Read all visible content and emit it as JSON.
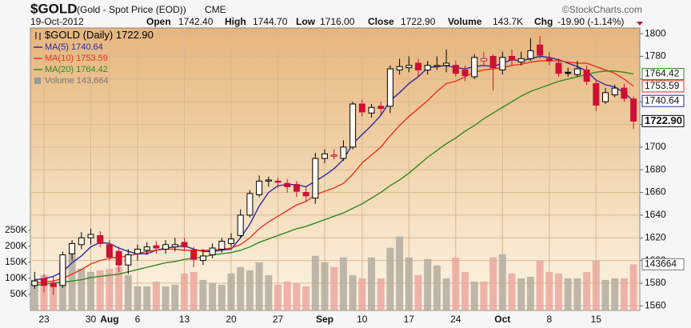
{
  "chart_data": {
    "type": "candlestick",
    "title": "$GOLD",
    "subtitle": "(Gold - Spot Price (EOD))",
    "exchange": "CME",
    "source": "©StockCharts.com",
    "date": "19-Oct-2012",
    "quote": [
      {
        "label": "Open",
        "value": "1742.40"
      },
      {
        "label": "High",
        "value": "1744.70"
      },
      {
        "label": "Low",
        "value": "1716.00"
      },
      {
        "label": "Close",
        "value": "1722.90"
      },
      {
        "label": "Volume",
        "value": "143.7K"
      },
      {
        "label": "Chg",
        "value": "-19.90 (-1.14%)"
      }
    ],
    "price_name": "$GOLD (Daily)",
    "price_last_label": "1722.90",
    "up_color": "#000000",
    "down_color": "#cc1133",
    "categories": [
      null,
      "23",
      null,
      null,
      null,
      null,
      "30",
      null,
      "Aug",
      null,
      null,
      "6",
      null,
      null,
      null,
      null,
      "13",
      null,
      null,
      null,
      null,
      "20",
      null,
      null,
      null,
      null,
      "27",
      null,
      null,
      null,
      null,
      "Sep",
      null,
      null,
      null,
      "10",
      null,
      null,
      null,
      null,
      "17",
      null,
      null,
      null,
      null,
      "24",
      null,
      null,
      null,
      null,
      "Oct",
      null,
      null,
      null,
      null,
      "8",
      null,
      null,
      null,
      null,
      "15",
      null,
      null,
      null,
      null
    ],
    "open": [
      1578,
      1584,
      1580,
      1578,
      1606,
      1614,
      1620,
      1622,
      1614,
      1608,
      1596,
      1606,
      1609,
      1613,
      1610,
      1612,
      1616,
      1609,
      1600,
      1605,
      1610,
      1615,
      1622,
      1640,
      1658,
      1670,
      1670,
      1668,
      1667,
      1660,
      1655,
      1690,
      1692,
      1690,
      1700,
      1738,
      1730,
      1736,
      1736,
      1768,
      1770,
      1774,
      1768,
      1771,
      1772,
      1772,
      1768,
      1762,
      1776,
      1780,
      1768,
      1780,
      1775,
      1778,
      1790,
      1778,
      1774,
      1766,
      1764,
      1768,
      1756,
      1740,
      1746,
      1752,
      1742.4
    ],
    "high": [
      1590,
      1588,
      1586,
      1608,
      1618,
      1625,
      1628,
      1626,
      1618,
      1612,
      1610,
      1614,
      1616,
      1617,
      1618,
      1620,
      1620,
      1612,
      1610,
      1615,
      1620,
      1624,
      1645,
      1662,
      1675,
      1674,
      1673,
      1672,
      1670,
      1665,
      1695,
      1698,
      1698,
      1706,
      1740,
      1742,
      1738,
      1740,
      1772,
      1778,
      1780,
      1778,
      1776,
      1780,
      1786,
      1776,
      1772,
      1782,
      1784,
      1782,
      1784,
      1786,
      1784,
      1796,
      1798,
      1784,
      1778,
      1770,
      1776,
      1772,
      1760,
      1752,
      1755,
      1756,
      1744.7
    ],
    "low": [
      1575,
      1572,
      1570,
      1576,
      1600,
      1610,
      1614,
      1612,
      1600,
      1590,
      1588,
      1600,
      1605,
      1606,
      1606,
      1608,
      1609,
      1594,
      1596,
      1602,
      1607,
      1612,
      1620,
      1638,
      1656,
      1665,
      1664,
      1660,
      1656,
      1652,
      1650,
      1686,
      1689,
      1688,
      1698,
      1727,
      1726,
      1728,
      1730,
      1764,
      1766,
      1762,
      1764,
      1768,
      1766,
      1762,
      1758,
      1760,
      1772,
      1750,
      1764,
      1772,
      1772,
      1776,
      1778,
      1772,
      1762,
      1762,
      1762,
      1755,
      1732,
      1738,
      1744,
      1740,
      1716
    ],
    "close": [
      1582,
      1578,
      1577,
      1605,
      1615,
      1620,
      1623,
      1615,
      1603,
      1596,
      1605,
      1610,
      1612,
      1611,
      1614,
      1614,
      1612,
      1601,
      1604,
      1611,
      1617,
      1619,
      1640,
      1659,
      1670,
      1671,
      1669,
      1665,
      1661,
      1657,
      1690,
      1694,
      1693,
      1700,
      1738,
      1731,
      1735,
      1734,
      1769,
      1771,
      1772,
      1768,
      1772,
      1772,
      1774,
      1765,
      1763,
      1779,
      1778,
      1770,
      1779,
      1777,
      1778,
      1785,
      1781,
      1776,
      1765,
      1765,
      1769,
      1758,
      1737,
      1748,
      1752,
      1743,
      1722.9
    ],
    "volume": {
      "name": "Volume",
      "axis": "y2",
      "up_color": "#b3ab9e",
      "down_color": "#eba79d",
      "legend_label": "143,664",
      "tag_label": "143664",
      "values": [
        95000,
        110000,
        90000,
        150000,
        180000,
        130000,
        120000,
        125000,
        130000,
        135000,
        110000,
        75000,
        75000,
        90000,
        75000,
        80000,
        115000,
        120000,
        95000,
        85000,
        80000,
        115000,
        135000,
        125000,
        150000,
        110000,
        80000,
        90000,
        85000,
        75000,
        170000,
        150000,
        135000,
        165000,
        110000,
        100000,
        165000,
        100000,
        195000,
        230000,
        165000,
        110000,
        160000,
        140000,
        100000,
        165000,
        120000,
        90000,
        90000,
        165000,
        175000,
        115000,
        100000,
        105000,
        155000,
        120000,
        115000,
        100000,
        100000,
        120000,
        155000,
        95000,
        100000,
        100000,
        143664
      ]
    },
    "series": [
      {
        "name": "MA(5)",
        "color": "#2a2aa8",
        "last_label": "1740.64",
        "values": [
          1583,
          1584,
          1586,
          1590,
          1598,
          1604,
          1612,
          1616,
          1615,
          1611,
          1608,
          1606,
          1606,
          1609,
          1611,
          1612,
          1613,
          1610,
          1608,
          1608,
          1609,
          1610,
          1620,
          1632,
          1648,
          1660,
          1666,
          1667,
          1667,
          1665,
          1670,
          1675,
          1681,
          1689,
          1703,
          1711,
          1719,
          1728,
          1741,
          1748,
          1756,
          1762,
          1770,
          1771,
          1772,
          1770,
          1769,
          1771,
          1772,
          1771,
          1774,
          1777,
          1776,
          1778,
          1780,
          1779,
          1777,
          1774,
          1771,
          1767,
          1759,
          1755,
          1753,
          1748,
          1740.64
        ]
      },
      {
        "name": "MA(10)",
        "color": "#e8331c",
        "last_label": "1753.59",
        "values": [
          1580,
          1581,
          1582,
          1584,
          1588,
          1592,
          1597,
          1600,
          1602,
          1603,
          1604,
          1606,
          1608,
          1609,
          1610,
          1610,
          1609,
          1609,
          1609,
          1609,
          1610,
          1611,
          1614,
          1620,
          1628,
          1634,
          1639,
          1644,
          1649,
          1652,
          1658,
          1661,
          1664,
          1668,
          1676,
          1686,
          1693,
          1700,
          1710,
          1719,
          1727,
          1734,
          1741,
          1749,
          1756,
          1758,
          1762,
          1766,
          1768,
          1769,
          1770,
          1772,
          1773,
          1775,
          1776,
          1776,
          1776,
          1775,
          1774,
          1774,
          1771,
          1768,
          1765,
          1760,
          1753.59
        ]
      },
      {
        "name": "MA(20)",
        "color": "#2f8a1f",
        "last_label": "1764.42",
        "values": [
          1578,
          1579,
          1580,
          1581,
          1582,
          1583,
          1585,
          1586,
          1587,
          1588,
          1590,
          1592,
          1594,
          1596,
          1598,
          1599,
          1601,
          1602,
          1603,
          1605,
          1606,
          1607,
          1609,
          1612,
          1616,
          1619,
          1622,
          1625,
          1628,
          1630,
          1633,
          1636,
          1639,
          1642,
          1646,
          1650,
          1655,
          1660,
          1666,
          1671,
          1677,
          1684,
          1691,
          1697,
          1703,
          1708,
          1714,
          1719,
          1725,
          1730,
          1735,
          1740,
          1745,
          1749,
          1752,
          1755,
          1758,
          1760,
          1762,
          1764,
          1766,
          1767,
          1767,
          1766,
          1764.42
        ]
      }
    ],
    "ylim": [
      1556,
      1805
    ],
    "yticks": [
      1560,
      1580,
      1600,
      1620,
      1640,
      1660,
      1680,
      1700,
      1720,
      1740,
      1760,
      1780,
      1800
    ],
    "y2lim": [
      0,
      880000
    ],
    "y2ticks": [
      {
        "value": 50000,
        "label": "50K"
      },
      {
        "value": 100000,
        "label": "100K"
      },
      {
        "value": 150000,
        "label": "150K"
      },
      {
        "value": 200000,
        "label": "200K"
      },
      {
        "value": 250000,
        "label": "250K"
      }
    ],
    "grid": true
  }
}
